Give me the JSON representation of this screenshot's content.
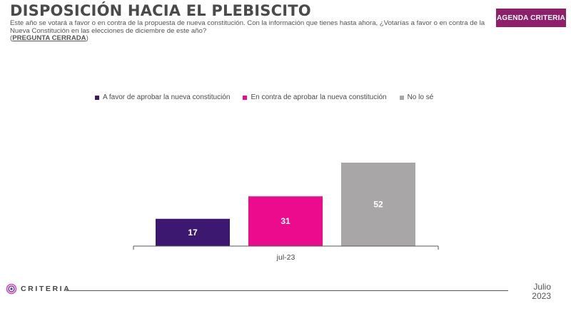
{
  "header": {
    "title": "DISPOSICIÓN HACIA EL PLEBISCITO",
    "question": "Este año se votará a favor o en contra de la propuesta de nueva constitución. Con la información que tienes hasta ahora, ¿Votarías a favor o en contra de la Nueva Constitución en las elecciones de diciembre de este año?",
    "closed_label": "PREGUNTA CERRADA",
    "badge": "AGENDA CRITERIA"
  },
  "chart_data": {
    "type": "bar",
    "categories": [
      "jul-23"
    ],
    "series": [
      {
        "name": "A favor de aprobar la nueva constitución",
        "values": [
          17
        ],
        "color": "#3d1870"
      },
      {
        "name": "En contra de aprobar la nueva constitución",
        "values": [
          31
        ],
        "color": "#ec0b8c"
      },
      {
        "name": "No lo sé",
        "values": [
          52
        ],
        "color": "#a8a6a6"
      }
    ],
    "ylim": [
      0,
      60
    ],
    "grid": false,
    "legend": "top"
  },
  "footer": {
    "brand": "CRITERIA",
    "month": "Julio",
    "year": "2023"
  }
}
